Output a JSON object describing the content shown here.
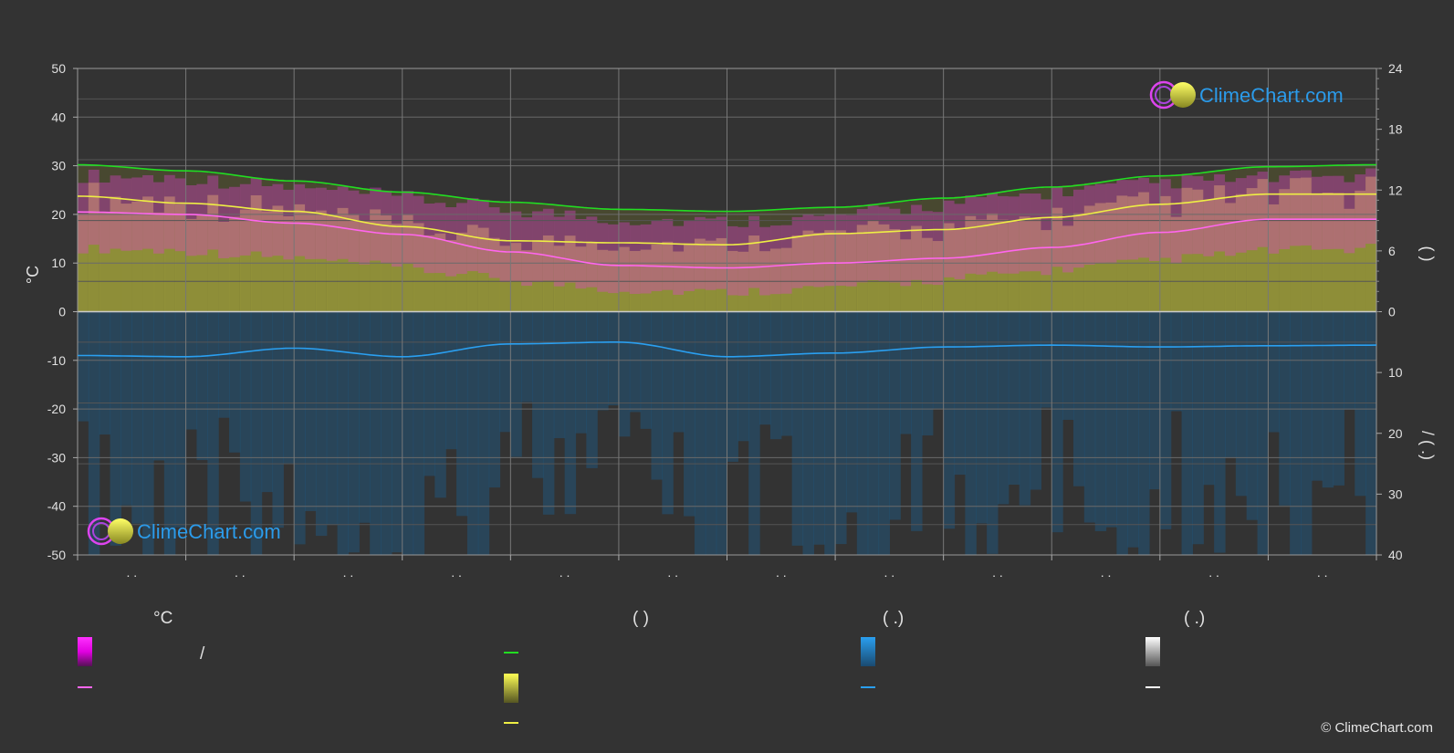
{
  "brand": {
    "name": "ClimeChart.com",
    "copyright": "© ClimeChart.com"
  },
  "colors": {
    "background": "#333333",
    "daylight": "#22dd22",
    "sunshine": "#eeee44",
    "temp_max": "#ff66ee",
    "precip": "#2a9ff0",
    "temp_band": "#e040d0",
    "sun_band": "#c8c840",
    "grid": "#6a6a6a"
  },
  "chart_data": {
    "type": "line",
    "xlabel": "",
    "month_labels": [
      ". .",
      ". .",
      ". .",
      ". .",
      ". .",
      ". .",
      ". .",
      ". .",
      ". .",
      ". .",
      ". .",
      ". ."
    ],
    "y_left": {
      "label": "°C",
      "ylim": [
        -50,
        50
      ],
      "ticks": [
        50,
        40,
        30,
        20,
        10,
        0,
        -10,
        -20,
        -30,
        -40,
        -50
      ]
    },
    "y_right_top": {
      "label": "(  )",
      "ylim": [
        0,
        24
      ],
      "ticks": [
        24,
        18,
        12,
        6,
        0
      ]
    },
    "y_right_bottom": {
      "label": "/ (  .)",
      "ylim": [
        0,
        40
      ],
      "ticks": [
        0,
        10,
        20,
        30,
        40
      ]
    },
    "series": [
      {
        "axis": "hours",
        "color": "#22dd22",
        "x": [
          0,
          1,
          2,
          3,
          4,
          5,
          6,
          7,
          8,
          9,
          10,
          11,
          12
        ],
        "values": [
          14.5,
          13.9,
          12.9,
          11.8,
          10.8,
          10.1,
          9.9,
          10.3,
          11.2,
          12.3,
          13.4,
          14.3,
          14.5
        ]
      },
      {
        "axis": "hours",
        "color": "#eeee44",
        "x": [
          0,
          1,
          2,
          3,
          4,
          5,
          6,
          7,
          8,
          9,
          10,
          11,
          12
        ],
        "values": [
          11.4,
          10.7,
          9.9,
          8.4,
          7.0,
          6.8,
          6.6,
          7.7,
          8.1,
          9.3,
          10.6,
          11.6,
          11.6
        ]
      },
      {
        "axis": "temp",
        "color": "#ff66ee",
        "x": [
          0,
          1,
          2,
          3,
          4,
          5,
          6,
          7,
          8,
          9,
          10,
          11,
          12
        ],
        "values": [
          20.5,
          20.0,
          18.2,
          15.9,
          12.3,
          9.5,
          9.0,
          10.0,
          11.0,
          13.2,
          16.3,
          19.0,
          19.0
        ]
      },
      {
        "axis": "precip",
        "color": "#2a9ff0",
        "x": [
          0,
          1,
          2,
          3,
          4,
          5,
          6,
          7,
          8,
          9,
          10,
          11,
          12
        ],
        "values": [
          7.2,
          7.4,
          6.0,
          7.4,
          5.3,
          5.0,
          7.4,
          6.8,
          5.8,
          5.5,
          5.8,
          5.6,
          5.5
        ]
      }
    ],
    "daily_temp_max_band": [
      28.0,
      27.5,
      25.5,
      23.5,
      21.0,
      19.0,
      18.5,
      19.5,
      22.0,
      24.5,
      26.5,
      27.5,
      28.0
    ],
    "daily_temp_min_band": [
      13.0,
      12.5,
      11.0,
      9.0,
      6.5,
      4.5,
      4.0,
      5.0,
      6.5,
      8.5,
      10.5,
      12.5,
      13.0
    ]
  },
  "legend": {
    "groups": [
      {
        "heading": "°C",
        "items": [
          "/",
          ""
        ]
      },
      {
        "heading": "(          )",
        "items": [
          "",
          "",
          ""
        ]
      },
      {
        "heading": "(   .)",
        "items": [
          "",
          ""
        ]
      },
      {
        "heading": "(   .)",
        "items": [
          "",
          ""
        ]
      }
    ]
  }
}
